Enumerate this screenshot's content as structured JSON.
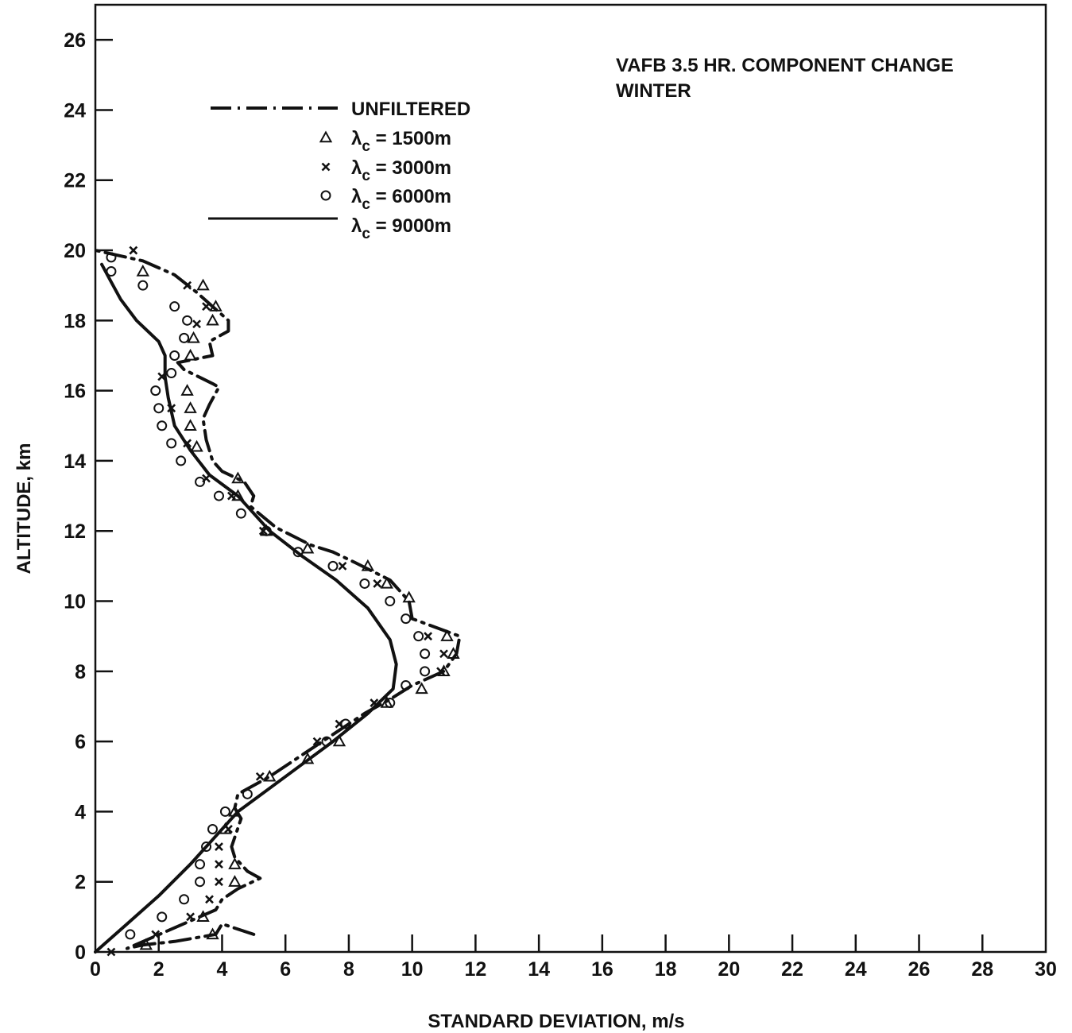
{
  "chart_data": {
    "type": "line",
    "title": "VAFB 3.5 HR. COMPONENT CHANGE",
    "subtitle": "WINTER",
    "xlabel": "STANDARD DEVIATION, m/s",
    "ylabel": "ALTITUDE, km",
    "xlim": [
      0,
      30
    ],
    "ylim": [
      0,
      27
    ],
    "x_ticks": [
      0,
      2,
      4,
      6,
      8,
      10,
      12,
      14,
      16,
      18,
      20,
      22,
      24,
      26,
      28,
      30
    ],
    "x_tick_labels": [
      "0",
      "2",
      "4",
      "6",
      "8",
      "10",
      "12",
      "14",
      "16",
      "18",
      "20",
      "22",
      "24",
      "26",
      "28",
      "30"
    ],
    "y_ticks": [
      0,
      2,
      4,
      6,
      8,
      10,
      12,
      14,
      16,
      18,
      20,
      22,
      24,
      26
    ],
    "y_tick_labels": [
      "0",
      "2",
      "4",
      "6",
      "8",
      "10",
      "12",
      "14",
      "16",
      "18",
      "20",
      "22",
      "24",
      "26"
    ],
    "grid": false,
    "legend_position": "top-left",
    "legend": [
      {
        "key": "unfiltered",
        "label": "UNFILTERED",
        "style": "dash-dot"
      },
      {
        "key": "lc1500",
        "label": "λc = 1500m",
        "style": "triangle"
      },
      {
        "key": "lc3000",
        "label": "λc = 3000m",
        "style": "x"
      },
      {
        "key": "lc6000",
        "label": "λc = 6000m",
        "style": "circle"
      },
      {
        "key": "lc9000",
        "label": "λc = 9000m",
        "style": "solid"
      }
    ],
    "series": [
      {
        "name": "UNFILTERED",
        "key": "unfiltered",
        "style": "dash-dot",
        "points": [
          [
            5.0,
            0.5
          ],
          [
            4.0,
            0.8
          ],
          [
            3.8,
            0.5
          ],
          [
            2.5,
            0.3
          ],
          [
            1.5,
            0.2
          ],
          [
            1.0,
            0.1
          ],
          [
            3.8,
            1.2
          ],
          [
            4.0,
            1.5
          ],
          [
            4.5,
            1.8
          ],
          [
            5.2,
            2.1
          ],
          [
            4.8,
            2.3
          ],
          [
            4.4,
            2.7
          ],
          [
            4.3,
            3.0
          ],
          [
            4.6,
            3.8
          ],
          [
            4.4,
            4.1
          ],
          [
            4.5,
            4.5
          ],
          [
            5.5,
            5.0
          ],
          [
            6.5,
            5.6
          ],
          [
            8.5,
            6.8
          ],
          [
            9.3,
            7.2
          ],
          [
            10.0,
            7.6
          ],
          [
            11.0,
            8.0
          ],
          [
            11.4,
            8.5
          ],
          [
            11.5,
            9.0
          ],
          [
            10.0,
            9.5
          ],
          [
            9.9,
            10.0
          ],
          [
            9.3,
            10.6
          ],
          [
            8.2,
            11.1
          ],
          [
            7.5,
            11.4
          ],
          [
            6.8,
            11.6
          ],
          [
            5.7,
            12.1
          ],
          [
            4.9,
            12.7
          ],
          [
            5.0,
            13.0
          ],
          [
            4.7,
            13.4
          ],
          [
            4.0,
            13.7
          ],
          [
            3.7,
            14.0
          ],
          [
            3.5,
            14.6
          ],
          [
            3.4,
            15.2
          ],
          [
            3.6,
            15.6
          ],
          [
            3.9,
            16.1
          ],
          [
            3.7,
            16.2
          ],
          [
            2.8,
            16.6
          ],
          [
            2.6,
            16.8
          ],
          [
            3.7,
            17.0
          ],
          [
            3.6,
            17.4
          ],
          [
            4.2,
            17.7
          ],
          [
            4.2,
            18.0
          ],
          [
            3.7,
            18.4
          ],
          [
            3.2,
            18.8
          ],
          [
            2.5,
            19.3
          ],
          [
            1.5,
            19.7
          ],
          [
            0.0,
            20.0
          ]
        ]
      },
      {
        "name": "λc = 1500m",
        "key": "lc1500",
        "style": "triangle",
        "points": [
          [
            1.6,
            0.2
          ],
          [
            3.7,
            0.5
          ],
          [
            3.4,
            1.0
          ],
          [
            4.4,
            2.0
          ],
          [
            4.4,
            2.5
          ],
          [
            4.1,
            3.5
          ],
          [
            4.4,
            4.0
          ],
          [
            5.5,
            5.0
          ],
          [
            6.7,
            5.5
          ],
          [
            7.7,
            6.0
          ],
          [
            9.2,
            7.1
          ],
          [
            10.3,
            7.5
          ],
          [
            11.0,
            8.0
          ],
          [
            11.3,
            8.5
          ],
          [
            11.1,
            9.0
          ],
          [
            9.9,
            10.1
          ],
          [
            9.2,
            10.5
          ],
          [
            8.6,
            11.0
          ],
          [
            6.7,
            11.5
          ],
          [
            5.4,
            12.0
          ],
          [
            4.5,
            13.0
          ],
          [
            4.5,
            13.5
          ],
          [
            3.2,
            14.4
          ],
          [
            3.0,
            15.0
          ],
          [
            3.0,
            15.5
          ],
          [
            2.9,
            16.0
          ],
          [
            3.0,
            17.0
          ],
          [
            3.1,
            17.5
          ],
          [
            3.7,
            18.0
          ],
          [
            3.8,
            18.4
          ],
          [
            3.4,
            19.0
          ],
          [
            1.5,
            19.4
          ]
        ]
      },
      {
        "name": "λc = 3000m",
        "key": "lc3000",
        "style": "x",
        "points": [
          [
            0.5,
            0.0
          ],
          [
            1.9,
            0.5
          ],
          [
            3.0,
            1.0
          ],
          [
            3.6,
            1.5
          ],
          [
            3.9,
            2.0
          ],
          [
            3.9,
            2.5
          ],
          [
            3.9,
            3.0
          ],
          [
            4.2,
            3.5
          ],
          [
            5.2,
            5.0
          ],
          [
            7.0,
            6.0
          ],
          [
            7.7,
            6.5
          ],
          [
            8.8,
            7.1
          ],
          [
            10.9,
            8.0
          ],
          [
            11.0,
            8.5
          ],
          [
            10.5,
            9.0
          ],
          [
            8.9,
            10.5
          ],
          [
            7.8,
            11.0
          ],
          [
            5.3,
            12.0
          ],
          [
            4.3,
            13.0
          ],
          [
            3.5,
            13.5
          ],
          [
            2.9,
            14.5
          ],
          [
            2.4,
            15.5
          ],
          [
            2.1,
            16.4
          ],
          [
            3.2,
            17.9
          ],
          [
            3.5,
            18.4
          ],
          [
            2.9,
            19.0
          ],
          [
            1.2,
            20.0
          ]
        ]
      },
      {
        "name": "λc = 6000m",
        "key": "lc6000",
        "style": "circle",
        "points": [
          [
            1.1,
            0.5
          ],
          [
            2.1,
            1.0
          ],
          [
            2.8,
            1.5
          ],
          [
            3.3,
            2.0
          ],
          [
            3.3,
            2.5
          ],
          [
            3.5,
            3.0
          ],
          [
            3.7,
            3.5
          ],
          [
            4.1,
            4.0
          ],
          [
            4.8,
            4.5
          ],
          [
            7.3,
            6.0
          ],
          [
            7.9,
            6.5
          ],
          [
            9.3,
            7.1
          ],
          [
            9.8,
            7.6
          ],
          [
            10.4,
            8.0
          ],
          [
            10.4,
            8.5
          ],
          [
            10.2,
            9.0
          ],
          [
            9.8,
            9.5
          ],
          [
            9.3,
            10.0
          ],
          [
            8.5,
            10.5
          ],
          [
            7.5,
            11.0
          ],
          [
            6.4,
            11.4
          ],
          [
            5.4,
            12.0
          ],
          [
            4.6,
            12.5
          ],
          [
            3.9,
            13.0
          ],
          [
            3.3,
            13.4
          ],
          [
            2.7,
            14.0
          ],
          [
            2.4,
            14.5
          ],
          [
            2.1,
            15.0
          ],
          [
            2.0,
            15.5
          ],
          [
            1.9,
            16.0
          ],
          [
            2.4,
            16.5
          ],
          [
            2.5,
            17.0
          ],
          [
            2.8,
            17.5
          ],
          [
            2.9,
            18.0
          ],
          [
            2.5,
            18.4
          ],
          [
            1.5,
            19.0
          ],
          [
            0.5,
            19.4
          ],
          [
            0.5,
            19.8
          ]
        ]
      },
      {
        "name": "λc = 9000m",
        "key": "lc9000",
        "style": "solid",
        "points": [
          [
            0.0,
            0.0
          ],
          [
            1.0,
            0.8
          ],
          [
            2.0,
            1.6
          ],
          [
            3.0,
            2.5
          ],
          [
            3.7,
            3.2
          ],
          [
            4.5,
            4.0
          ],
          [
            6.0,
            5.0
          ],
          [
            7.5,
            6.0
          ],
          [
            8.6,
            6.8
          ],
          [
            9.4,
            7.5
          ],
          [
            9.5,
            8.2
          ],
          [
            9.3,
            8.9
          ],
          [
            8.6,
            9.8
          ],
          [
            7.6,
            10.6
          ],
          [
            6.5,
            11.3
          ],
          [
            5.5,
            12.0
          ],
          [
            4.5,
            13.0
          ],
          [
            3.6,
            13.6
          ],
          [
            3.0,
            14.3
          ],
          [
            2.5,
            15.0
          ],
          [
            2.3,
            15.8
          ],
          [
            2.2,
            16.4
          ],
          [
            2.2,
            17.0
          ],
          [
            2.0,
            17.4
          ],
          [
            1.3,
            18.0
          ],
          [
            0.8,
            18.6
          ],
          [
            0.5,
            19.1
          ],
          [
            0.2,
            19.6
          ]
        ]
      }
    ]
  }
}
